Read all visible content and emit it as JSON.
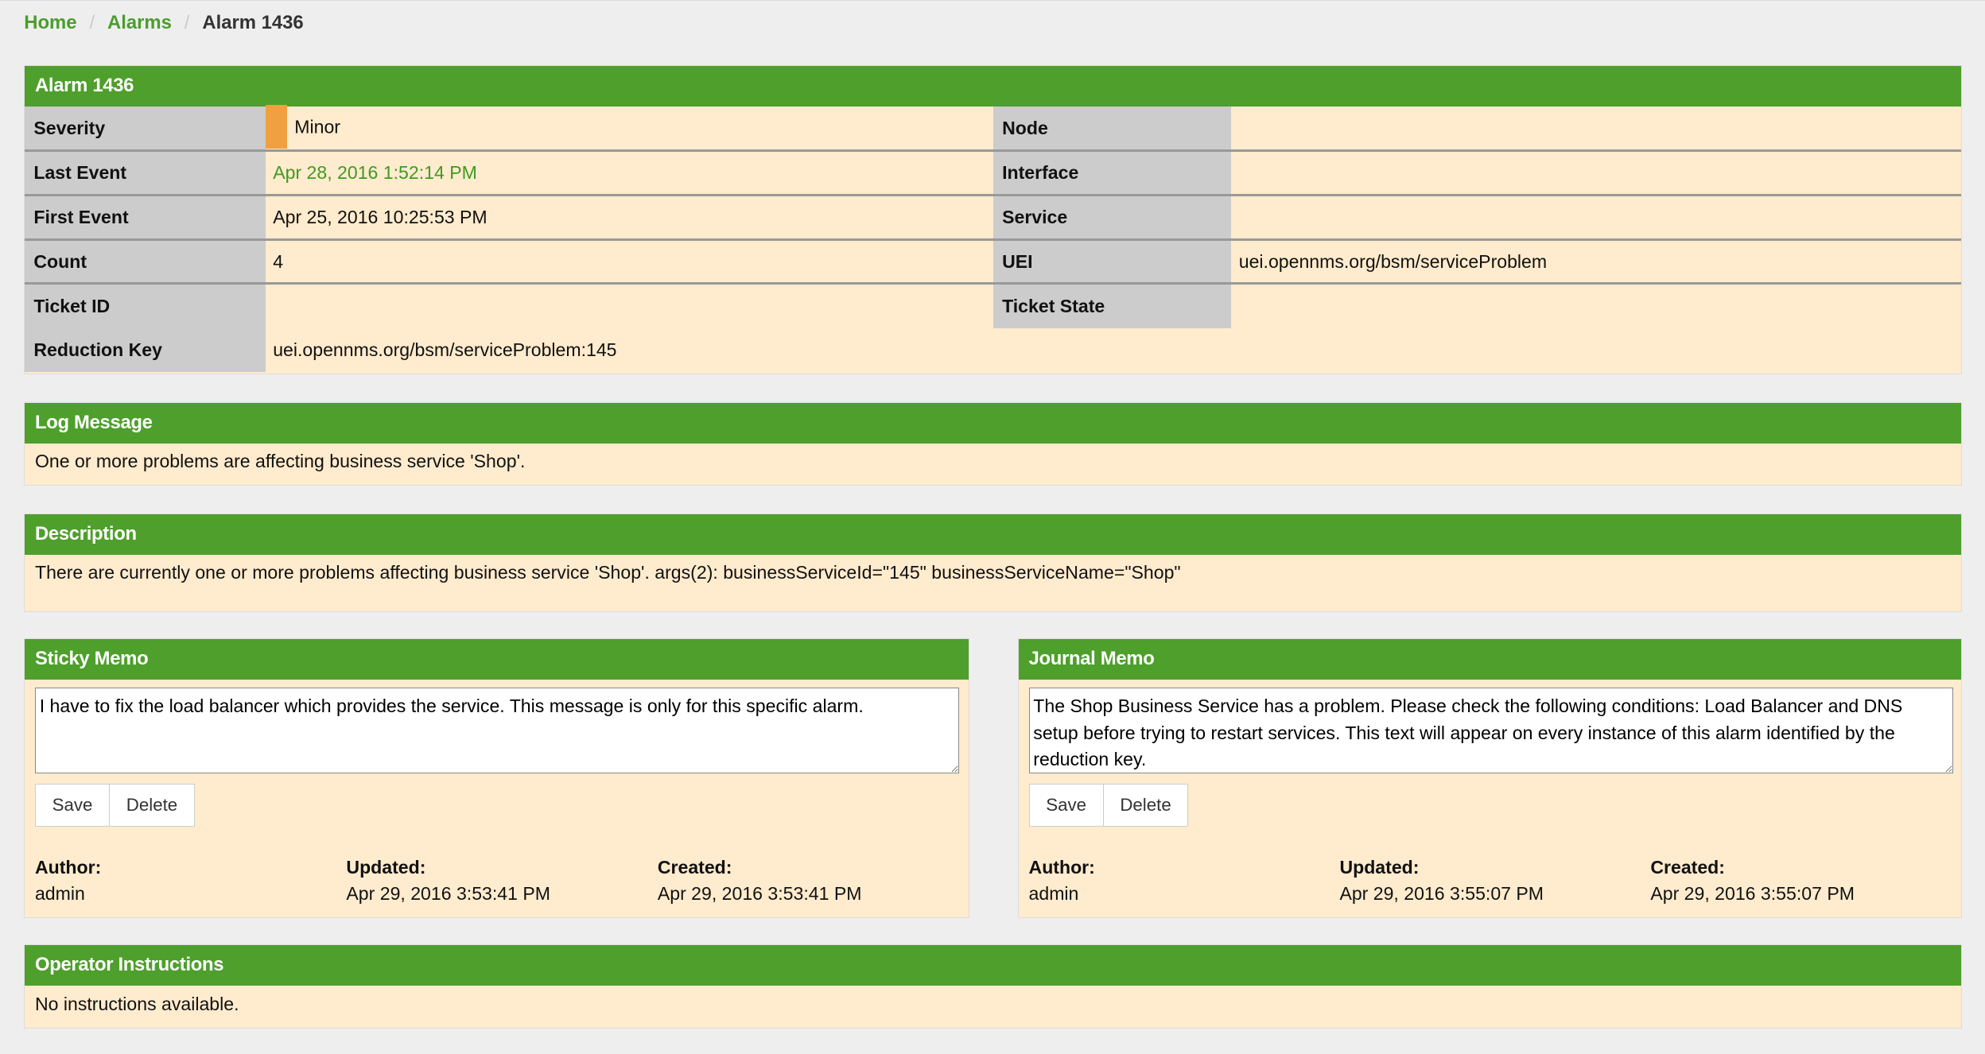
{
  "breadcrumb": {
    "home": "Home",
    "alarms": "Alarms",
    "current": "Alarm 1436",
    "sep": "/"
  },
  "alarm": {
    "title": "Alarm 1436",
    "rows": [
      {
        "l1": "Severity",
        "v1": "Minor",
        "l2": "Node",
        "v2": ""
      },
      {
        "l1": "Last Event",
        "v1": "Apr 28, 2016 1:52:14 PM",
        "l2": "Interface",
        "v2": ""
      },
      {
        "l1": "First Event",
        "v1": "Apr 25, 2016 10:25:53 PM",
        "l2": "Service",
        "v2": ""
      },
      {
        "l1": "Count",
        "v1": "4",
        "l2": "UEI",
        "v2": "uei.opennms.org/bsm/serviceProblem"
      },
      {
        "l1": "Ticket ID",
        "v1": "",
        "l2": "Ticket State",
        "v2": ""
      }
    ],
    "reduction_key_label": "Reduction Key",
    "reduction_key": "uei.opennms.org/bsm/serviceProblem:145",
    "severity_color": "#f0a040"
  },
  "log": {
    "title": "Log Message",
    "text": "One or more problems are affecting business service 'Shop'."
  },
  "description": {
    "title": "Description",
    "text": "There are currently one or more problems affecting business service 'Shop'. args(2): businessServiceId=\"145\" businessServiceName=\"Shop\""
  },
  "sticky": {
    "title": "Sticky Memo",
    "text": "I have to fix the load balancer which provides the service. This message is only for this specific alarm.",
    "save": "Save",
    "delete": "Delete",
    "author_label": "Author:",
    "author": "admin",
    "updated_label": "Updated:",
    "updated": "Apr 29, 2016 3:53:41 PM",
    "created_label": "Created:",
    "created": "Apr 29, 2016 3:53:41 PM"
  },
  "journal": {
    "title": "Journal Memo",
    "text": "The Shop Business Service has a problem. Please check the following conditions: Load Balancer and DNS setup before trying to restart services. This text will appear on every instance of this alarm identified by the reduction key.",
    "save": "Save",
    "delete": "Delete",
    "author_label": "Author:",
    "author": "admin",
    "updated_label": "Updated:",
    "updated": "Apr 29, 2016 3:55:07 PM",
    "created_label": "Created:",
    "created": "Apr 29, 2016 3:55:07 PM"
  },
  "instructions": {
    "title": "Operator Instructions",
    "text": "No instructions available."
  },
  "colors": {
    "header": "#4e9f2c",
    "panel": "#ffebcd",
    "label": "#cccccc"
  }
}
